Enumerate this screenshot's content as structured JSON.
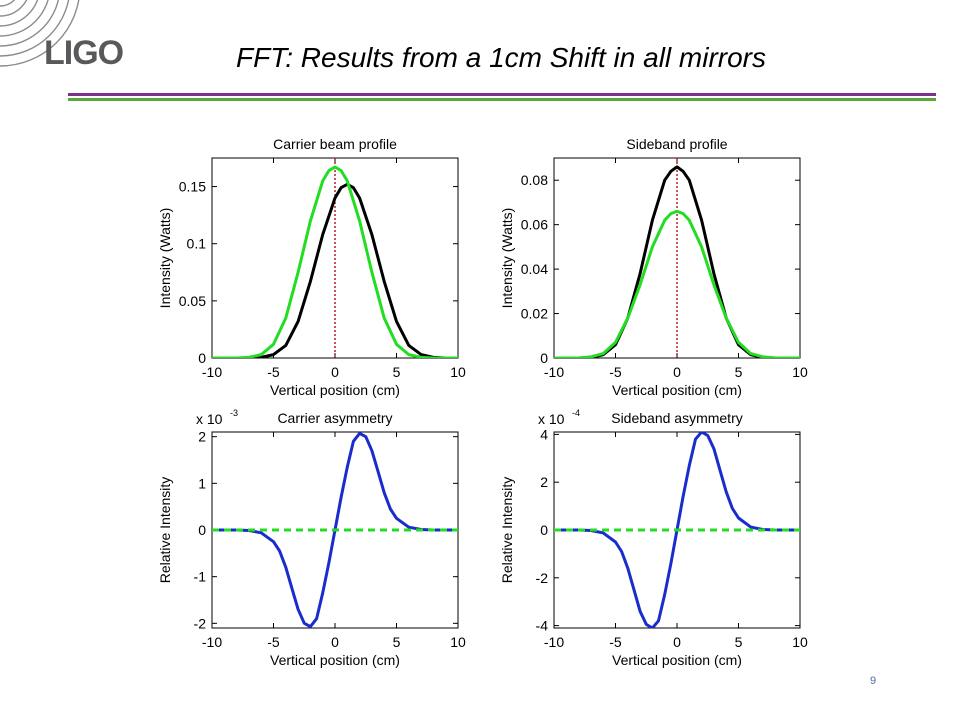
{
  "slide": {
    "logo_text": "LIGO",
    "title": "FFT: Results from a 1cm Shift in all mirrors",
    "page_number": "9",
    "colors": {
      "rule_top": "#7b2f8e",
      "rule_bottom": "#5aa53c",
      "logo": "#58595b"
    }
  },
  "chart_data": [
    {
      "type": "line",
      "title": "Carrier beam profile",
      "xlabel": "Vertical position (cm)",
      "ylabel": "Intensity (Watts)",
      "xlim": [
        -10,
        10
      ],
      "ylim": [
        0,
        0.175
      ],
      "xticks": [
        -10,
        -5,
        0,
        5,
        10
      ],
      "yticks": [
        0,
        0.05,
        0.1,
        0.15
      ],
      "ytick_labels": [
        "0",
        "0.05",
        "0.1",
        "0.15"
      ],
      "exponent_label": "",
      "vline": {
        "x": 0,
        "color": "#b22222",
        "style": "dotted"
      },
      "series": [
        {
          "color": "#000000",
          "style": "solid",
          "x": [
            -10,
            -9,
            -8,
            -7,
            -6,
            -5,
            -4,
            -3,
            -2,
            -1,
            0,
            0.5,
            1,
            1.5,
            2,
            3,
            4,
            5,
            6,
            7,
            8,
            9,
            10
          ],
          "y": [
            0,
            0,
            0,
            0,
            0.0005,
            0.003,
            0.011,
            0.032,
            0.067,
            0.108,
            0.14,
            0.149,
            0.152,
            0.149,
            0.14,
            0.108,
            0.067,
            0.032,
            0.011,
            0.003,
            0.0005,
            0,
            0
          ]
        },
        {
          "color": "#22dd22",
          "style": "solid",
          "x": [
            -10,
            -9,
            -8,
            -7,
            -6,
            -5,
            -4,
            -3,
            -2,
            -1,
            -0.5,
            0,
            0.5,
            1,
            2,
            3,
            4,
            5,
            6,
            7,
            8,
            9,
            10
          ],
          "y": [
            0,
            0,
            0,
            0.0005,
            0.003,
            0.012,
            0.035,
            0.075,
            0.12,
            0.155,
            0.164,
            0.167,
            0.164,
            0.155,
            0.12,
            0.075,
            0.035,
            0.012,
            0.003,
            0.0005,
            0,
            0,
            0
          ]
        }
      ]
    },
    {
      "type": "line",
      "title": "Sideband profile",
      "xlabel": "Vertical position (cm)",
      "ylabel": "Intensity (Watts)",
      "xlim": [
        -10,
        10
      ],
      "ylim": [
        0,
        0.09
      ],
      "xticks": [
        -10,
        -5,
        0,
        5,
        10
      ],
      "yticks": [
        0,
        0.02,
        0.04,
        0.06,
        0.08
      ],
      "ytick_labels": [
        "0",
        "0.02",
        "0.04",
        "0.06",
        "0.08"
      ],
      "exponent_label": "",
      "vline": {
        "x": 0,
        "color": "#b22222",
        "style": "dotted"
      },
      "series": [
        {
          "color": "#000000",
          "style": "solid",
          "x": [
            -10,
            -9,
            -8,
            -7,
            -6,
            -5,
            -4,
            -3,
            -2,
            -1,
            -0.5,
            0,
            0.5,
            1,
            2,
            3,
            4,
            5,
            6,
            7,
            8,
            9,
            10
          ],
          "y": [
            0,
            0,
            0,
            0.0002,
            0.0015,
            0.006,
            0.018,
            0.038,
            0.062,
            0.08,
            0.084,
            0.086,
            0.084,
            0.08,
            0.062,
            0.038,
            0.018,
            0.006,
            0.0015,
            0.0002,
            0,
            0,
            0
          ]
        },
        {
          "color": "#22dd22",
          "style": "solid",
          "x": [
            -10,
            -9,
            -8,
            -7,
            -6,
            -5,
            -4,
            -3,
            -2,
            -1,
            -0.5,
            0,
            0.5,
            1,
            2,
            3,
            4,
            5,
            6,
            7,
            8,
            9,
            10
          ],
          "y": [
            0,
            0,
            0,
            0.0005,
            0.002,
            0.007,
            0.018,
            0.033,
            0.05,
            0.062,
            0.065,
            0.066,
            0.065,
            0.062,
            0.05,
            0.033,
            0.018,
            0.007,
            0.002,
            0.0005,
            0,
            0,
            0
          ]
        }
      ]
    },
    {
      "type": "line",
      "title": "Carrier asymmetry",
      "xlabel": "Vertical position (cm)",
      "ylabel": "Relative Intensity",
      "xlim": [
        -10,
        10
      ],
      "ylim": [
        -2.1,
        2.1
      ],
      "xticks": [
        -10,
        -5,
        0,
        5,
        10
      ],
      "yticks": [
        -2,
        -1,
        0,
        1,
        2
      ],
      "ytick_labels": [
        "-2",
        "-1",
        "0",
        "1",
        "2"
      ],
      "exponent_label": "x 10",
      "exponent_power": "-3",
      "series": [
        {
          "color": "#1a2ccc",
          "style": "solid",
          "x": [
            -10,
            -8,
            -7,
            -6,
            -5,
            -4.5,
            -4,
            -3.5,
            -3,
            -2.5,
            -2,
            -1.5,
            -1,
            -0.5,
            0,
            0.5,
            1,
            1.5,
            2,
            2.5,
            3,
            3.5,
            4,
            4.5,
            5,
            6,
            7,
            8,
            10
          ],
          "y": [
            0,
            0,
            -0.01,
            -0.06,
            -0.25,
            -0.45,
            -0.8,
            -1.25,
            -1.7,
            -2.0,
            -2.07,
            -1.9,
            -1.35,
            -0.7,
            0,
            0.7,
            1.35,
            1.9,
            2.07,
            2.0,
            1.7,
            1.25,
            0.8,
            0.45,
            0.25,
            0.06,
            0.01,
            0,
            0
          ]
        },
        {
          "color": "#22dd22",
          "style": "dashed",
          "x": [
            -10,
            10
          ],
          "y": [
            0,
            0
          ]
        }
      ]
    },
    {
      "type": "line",
      "title": "Sideband asymmetry",
      "xlabel": "Vertical position (cm)",
      "ylabel": "Relative Intensity",
      "xlim": [
        -10,
        10
      ],
      "ylim": [
        -4.1,
        4.1
      ],
      "xticks": [
        -10,
        -5,
        0,
        5,
        10
      ],
      "yticks": [
        -4,
        -2,
        0,
        2,
        4
      ],
      "ytick_labels": [
        "-4",
        "-2",
        "0",
        "2",
        "4"
      ],
      "exponent_label": "x 10",
      "exponent_power": "-4",
      "series": [
        {
          "color": "#1a2ccc",
          "style": "solid",
          "x": [
            -10,
            -8,
            -7,
            -6,
            -5,
            -4.5,
            -4,
            -3.5,
            -3,
            -2.5,
            -2,
            -1.5,
            -1,
            -0.5,
            0,
            0.5,
            1,
            1.5,
            2,
            2.5,
            3,
            3.5,
            4,
            4.5,
            5,
            6,
            7,
            8,
            10
          ],
          "y": [
            0,
            0,
            -0.02,
            -0.12,
            -0.5,
            -0.9,
            -1.6,
            -2.5,
            -3.4,
            -3.95,
            -4.1,
            -3.8,
            -2.7,
            -1.4,
            0,
            1.4,
            2.7,
            3.8,
            4.1,
            3.95,
            3.4,
            2.5,
            1.6,
            0.9,
            0.5,
            0.12,
            0.02,
            0,
            0
          ]
        },
        {
          "color": "#22dd22",
          "style": "dashed",
          "x": [
            -10,
            10
          ],
          "y": [
            0,
            0
          ]
        }
      ]
    }
  ]
}
